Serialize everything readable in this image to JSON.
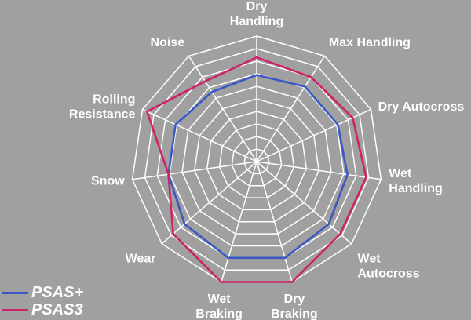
{
  "chart_data": {
    "type": "radar",
    "axes": [
      "Dry Handling",
      "Max Handling",
      "Dry Autocross",
      "Wet Handling",
      "Wet Autocross",
      "Dry Braking",
      "Wet Braking",
      "Wear",
      "Snow",
      "Rolling Resistance",
      "Noise"
    ],
    "axis_label_lines": [
      [
        "Dry",
        "Handling"
      ],
      [
        "Max Handling"
      ],
      [
        "Dry Autocross"
      ],
      [
        "Wet",
        "Handling"
      ],
      [
        "Wet",
        "Autocross"
      ],
      [
        "Dry",
        "Braking"
      ],
      [
        "Wet",
        "Braking"
      ],
      [
        "Wear"
      ],
      [
        "Snow"
      ],
      [
        "Rolling",
        "Resistance"
      ],
      [
        "Noise"
      ]
    ],
    "range": [
      0,
      10
    ],
    "rings": 10,
    "grid": true,
    "legend_position": "bottom-left",
    "series": [
      {
        "name": "PSAS+",
        "color": "#3a57c4",
        "values": [
          6.9,
          7.1,
          7.1,
          7.3,
          7.6,
          8.0,
          8.0,
          7.6,
          7.1,
          7.1,
          6.6
        ]
      },
      {
        "name": "PSAS3",
        "color": "#cc2369",
        "values": [
          8.3,
          8.0,
          8.4,
          8.8,
          8.8,
          10.0,
          10.0,
          8.8,
          7.1,
          9.6,
          7.6
        ]
      }
    ],
    "colors": {
      "background": "#a0a0a0",
      "grid": "#ffffff",
      "text": "#ffffff"
    }
  }
}
